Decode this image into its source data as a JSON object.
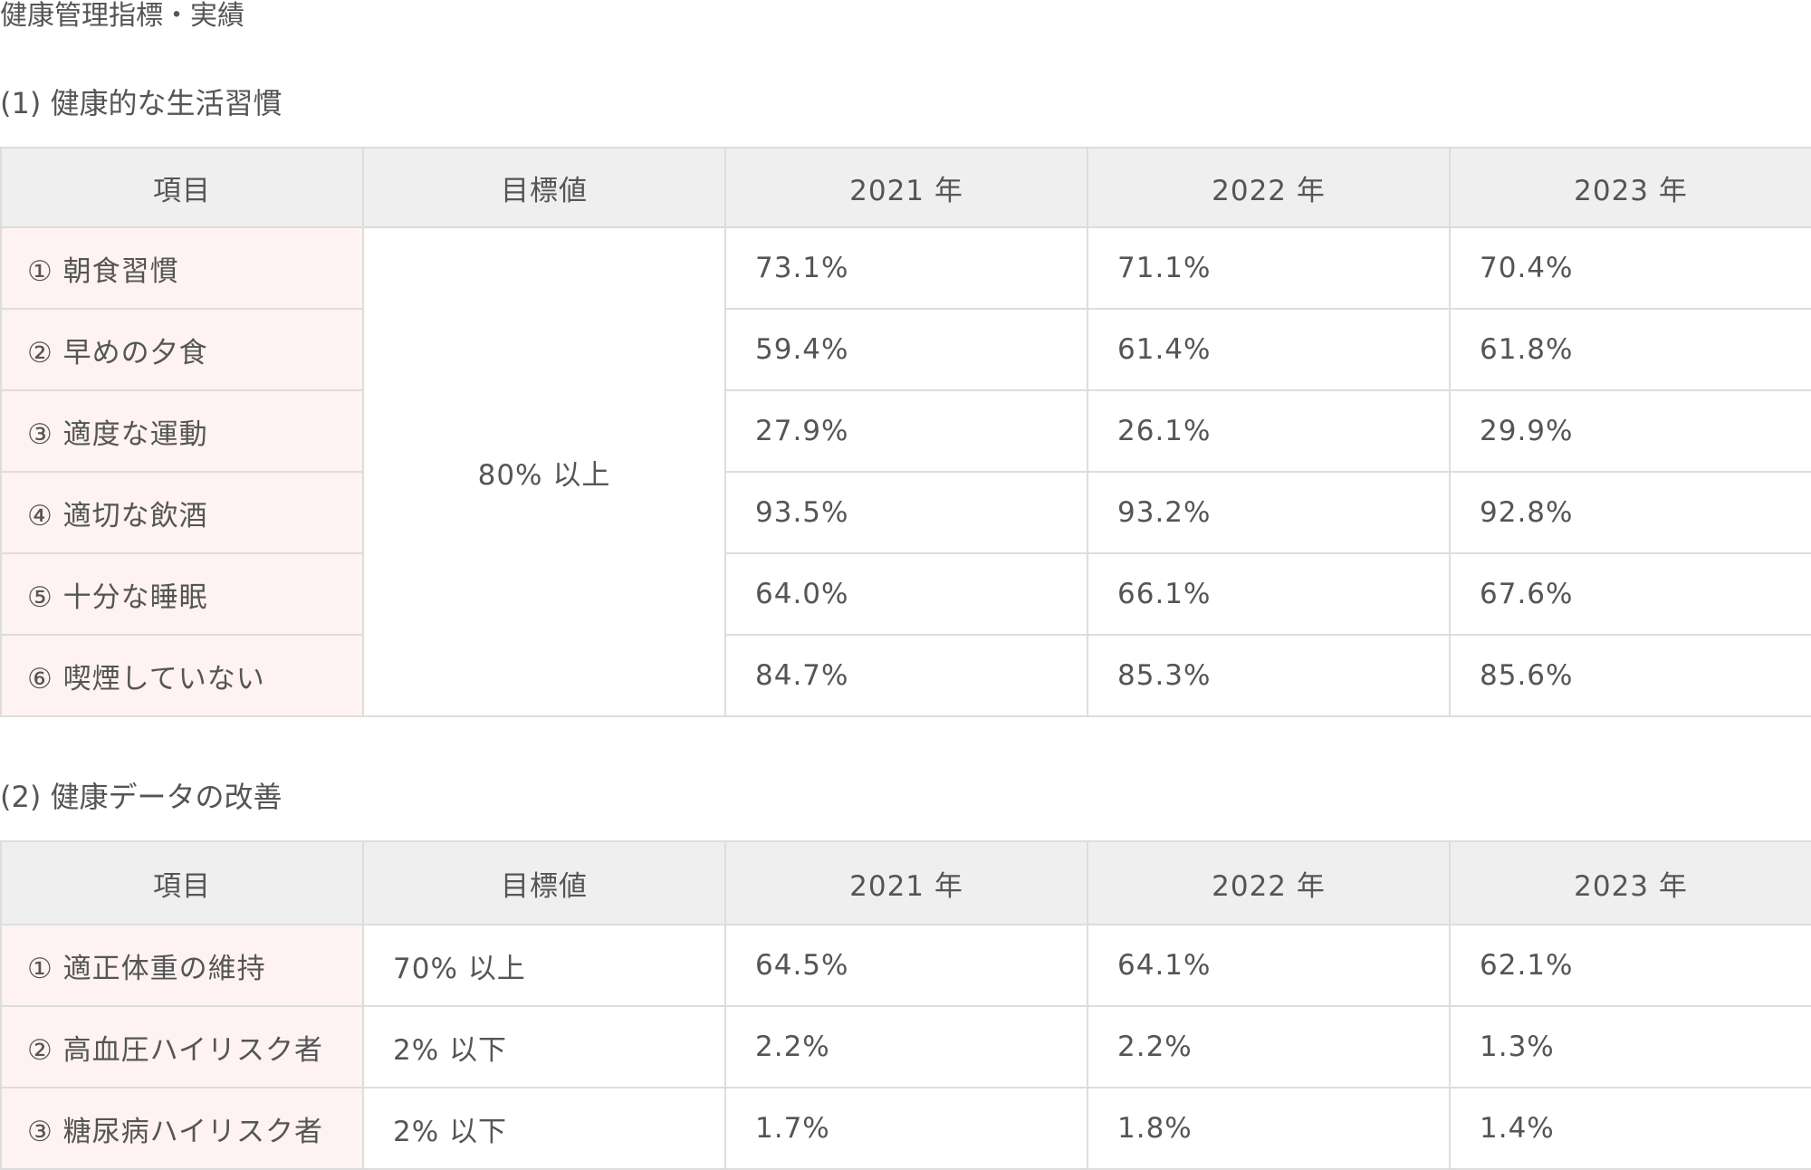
{
  "page_title": "健康管理指標・実績",
  "section1": {
    "title": "(1) 健康的な生活習慣",
    "headers": [
      "項目",
      "目標値",
      "2021 年",
      "2022 年",
      "2023 年"
    ],
    "target": "80% 以上",
    "rows": [
      {
        "item": "① 朝食習慣",
        "y2021": "73.1%",
        "y2022": "71.1%",
        "y2023": "70.4%"
      },
      {
        "item": "② 早めの夕食",
        "y2021": "59.4%",
        "y2022": "61.4%",
        "y2023": "61.8%"
      },
      {
        "item": "③ 適度な運動",
        "y2021": "27.9%",
        "y2022": "26.1%",
        "y2023": "29.9%"
      },
      {
        "item": "④ 適切な飲酒",
        "y2021": "93.5%",
        "y2022": "93.2%",
        "y2023": "92.8%"
      },
      {
        "item": "⑤ 十分な睡眠",
        "y2021": "64.0%",
        "y2022": "66.1%",
        "y2023": "67.6%"
      },
      {
        "item": "⑥ 喫煙していない",
        "y2021": "84.7%",
        "y2022": "85.3%",
        "y2023": "85.6%"
      }
    ]
  },
  "section2": {
    "title": "(2) 健康データの改善",
    "headers": [
      "項目",
      "目標値",
      "2021 年",
      "2022 年",
      "2023 年"
    ],
    "rows": [
      {
        "item": "① 適正体重の維持",
        "target": "70% 以上",
        "y2021": "64.5%",
        "y2022": "64.1%",
        "y2023": "62.1%"
      },
      {
        "item": "② 高血圧ハイリスク者",
        "target": "2% 以下",
        "y2021": "2.2%",
        "y2022": "2.2%",
        "y2023": "1.3%"
      },
      {
        "item": "③ 糖尿病ハイリスク者",
        "target": "2% 以下",
        "y2021": "1.7%",
        "y2022": "1.8%",
        "y2023": "1.4%"
      }
    ]
  }
}
